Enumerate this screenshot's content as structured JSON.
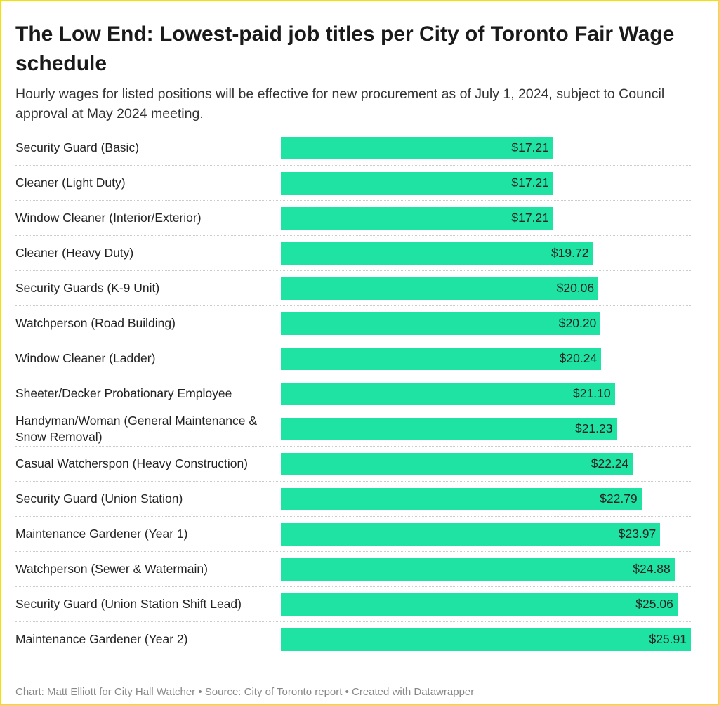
{
  "chart_data": {
    "type": "bar",
    "orientation": "horizontal",
    "title": "The Low End: Lowest-paid job titles per City of Toronto Fair Wage schedule",
    "subtitle": "Hourly wages for listed positions will be effective for new procurement as of July 1, 2024, subject to Council approval at May 2024 meeting.",
    "categories": [
      "Security Guard (Basic)",
      "Cleaner (Light Duty)",
      "Window Cleaner (Interior/Exterior)",
      "Cleaner (Heavy Duty)",
      "Security Guards (K-9 Unit)",
      "Watchperson (Road Building)",
      "Window Cleaner (Ladder)",
      "Sheeter/Decker Probationary Employee",
      "Handyman/Woman (General Maintenance & Snow Removal)",
      "Casual Watcherspon (Heavy Construction)",
      "Security Guard (Union Station)",
      "Maintenance Gardener (Year 1)",
      "Watchperson (Sewer & Watermain)",
      "Security Guard (Union Station Shift Lead)",
      "Maintenance Gardener (Year 2)"
    ],
    "values": [
      17.21,
      17.21,
      17.21,
      19.72,
      20.06,
      20.2,
      20.24,
      21.1,
      21.23,
      22.24,
      22.79,
      23.97,
      24.88,
      25.06,
      25.91
    ],
    "value_labels": [
      "$17.21",
      "$17.21",
      "$17.21",
      "$19.72",
      "$20.06",
      "$20.20",
      "$20.24",
      "$21.10",
      "$21.23",
      "$22.24",
      "$22.79",
      "$23.97",
      "$24.88",
      "$25.06",
      "$25.91"
    ],
    "color": "#1ee3a2",
    "footer": "Chart: Matt Elliott for City Hall Watcher • Source: City of Toronto report • Created with Datawrapper"
  }
}
